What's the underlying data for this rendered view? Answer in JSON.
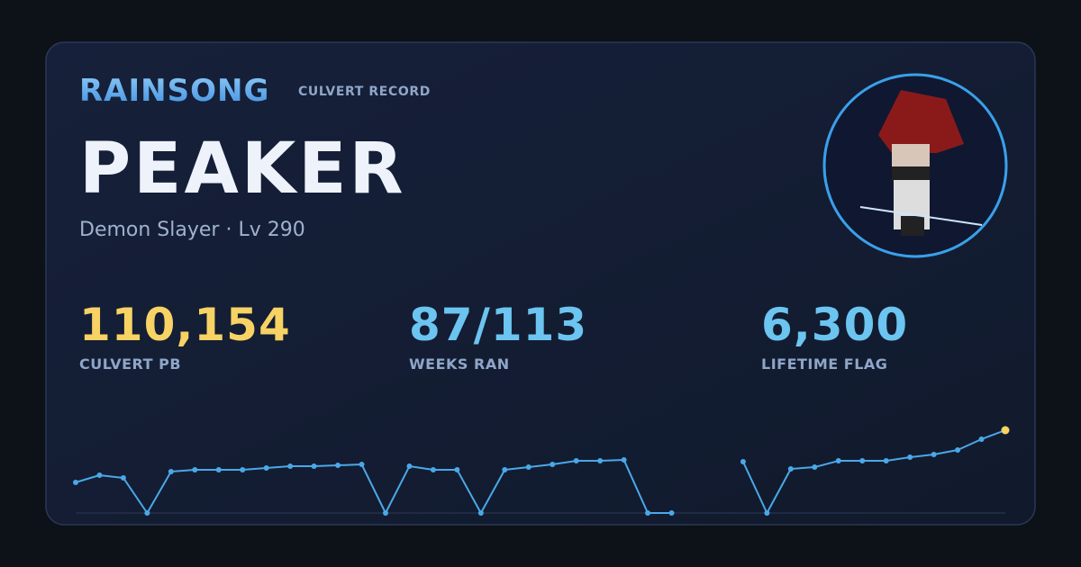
{
  "brand": "RAINSONG",
  "tag": "CULVERT RECORD",
  "name": "PEAKER",
  "subtitle": "Demon Slayer · Lv 290",
  "stats": [
    {
      "value": "110,154",
      "label": "CULVERT PB",
      "color": "#f7d264"
    },
    {
      "value": "87/113",
      "label": "WEEKS RAN",
      "color": "#6cc4f0"
    },
    {
      "value": "6,300",
      "label": "LIFETIME FLAG",
      "color": "#6cc4f0"
    }
  ],
  "chart_data": {
    "type": "line",
    "color": "#4aa8e8",
    "highlight_color": "#f7d264",
    "ylim": [
      0,
      110154
    ],
    "values": [
      40700,
      50300,
      46700,
      0,
      55100,
      57500,
      57500,
      57500,
      59900,
      62200,
      62200,
      63400,
      64600,
      0,
      62200,
      57500,
      57500,
      0,
      57500,
      61000,
      64600,
      69400,
      69400,
      70600,
      0,
      0,
      null,
      null,
      68200,
      0,
      58700,
      61000,
      69400,
      69400,
      69400,
      74200,
      77800,
      83800,
      98200,
      110154
    ]
  }
}
